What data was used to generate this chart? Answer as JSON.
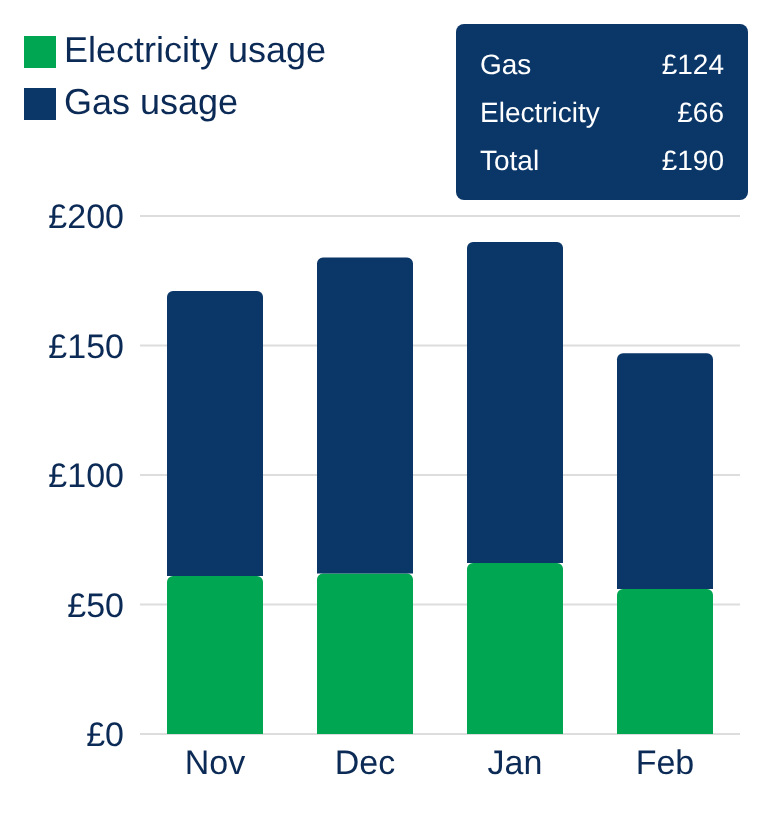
{
  "chart_data": {
    "type": "bar",
    "stacked": true,
    "categories": [
      "Nov",
      "Dec",
      "Jan",
      "Feb"
    ],
    "series": [
      {
        "name": "Electricity usage",
        "color": "#00a651",
        "values": [
          61,
          62,
          66,
          56
        ]
      },
      {
        "name": "Gas usage",
        "color": "#0b3668",
        "values": [
          110,
          122,
          124,
          91
        ]
      }
    ],
    "ylim": [
      0,
      200
    ],
    "yticks": [
      {
        "value": 0,
        "label": "£0"
      },
      {
        "value": 50,
        "label": "£50"
      },
      {
        "value": 100,
        "label": "£100"
      },
      {
        "value": 150,
        "label": "£150"
      },
      {
        "value": 200,
        "label": "£200"
      }
    ],
    "grid": "y",
    "legend": "top left",
    "annotations": [
      "Gas",
      "£124",
      "Electricity",
      "£66",
      "Total",
      "£190"
    ]
  }
}
